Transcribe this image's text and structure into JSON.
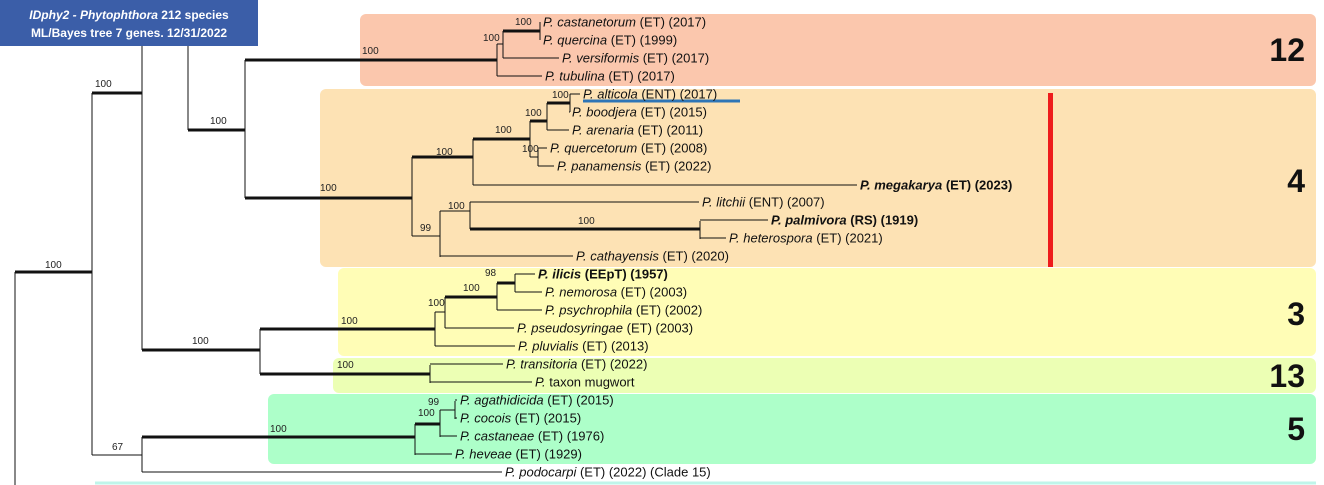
{
  "title": {
    "line1": [
      "IDphy2 - Phytophthora",
      " 212 species"
    ],
    "line2": "ML/Bayes tree 7 genes. 12/31/2022"
  },
  "clades": [
    {
      "label": "12",
      "color": "#fbc7ad"
    },
    {
      "label": "4",
      "color": "#fde2b4"
    },
    {
      "label": "3",
      "color": "#fffdb6"
    },
    {
      "label": "13",
      "color": "#ecffb4"
    },
    {
      "label": "5",
      "color": "#adffc9"
    }
  ],
  "leaves": [
    {
      "genus": "P.",
      "species": "castanetorum",
      "tag": "(ET) (2017)"
    },
    {
      "genus": "P.",
      "species": "quercina",
      "tag": "(ET) (1999)"
    },
    {
      "genus": "P.",
      "species": "versiformis",
      "tag": "(ET) (2017)"
    },
    {
      "genus": "P.",
      "species": "tubulina",
      "tag": "(ET) (2017)"
    },
    {
      "genus": "P.",
      "species": "alticola",
      "tag": "(ENT) (2017)",
      "underline": true
    },
    {
      "genus": "P.",
      "species": "boodjera",
      "tag": "(ET) (2015)"
    },
    {
      "genus": "P.",
      "species": "arenaria",
      "tag": "(ET) (2011)"
    },
    {
      "genus": "P.",
      "species": "quercetorum",
      "tag": "(ET) (2008)"
    },
    {
      "genus": "P.",
      "species": "panamensis",
      "tag": "(ET) (2022)"
    },
    {
      "genus": "P.",
      "species": "megakarya",
      "tag": "(ET) (2023)",
      "bold": true
    },
    {
      "genus": "P.",
      "species": "litchii",
      "tag": "(ENT) (2007)"
    },
    {
      "genus": "P.",
      "species": "palmivora",
      "tag": "(RS) (1919)",
      "bold": true
    },
    {
      "genus": "P.",
      "species": "heterospora",
      "tag": "(ET) (2021)"
    },
    {
      "genus": "P.",
      "species": "cathayensis",
      "tag": "(ET) (2020)"
    },
    {
      "genus": "P.",
      "species": "ilicis",
      "tag": "(EEpT) (1957)",
      "bold": true
    },
    {
      "genus": "P.",
      "species": "nemorosa",
      "tag": "(ET) (2003)"
    },
    {
      "genus": "P.",
      "species": "psychrophila",
      "tag": "(ET) (2002)"
    },
    {
      "genus": "P.",
      "species": "pseudosyringae",
      "tag": "(ET) (2003)"
    },
    {
      "genus": "P.",
      "species": "pluvialis",
      "tag": "(ET) (2013)"
    },
    {
      "genus": "P.",
      "species": "transitoria",
      "tag": "(ET) (2022)"
    },
    {
      "genus": "P.",
      "tag": "taxon mugwort"
    },
    {
      "genus": "P.",
      "species": "agathidicida",
      "tag": "(ET) (2015)"
    },
    {
      "genus": "P.",
      "species": "cocois",
      "tag": "(ET) (2015)"
    },
    {
      "genus": "P.",
      "species": "castaneae",
      "tag": "(ET) (1976)"
    },
    {
      "genus": "P.",
      "species": "heveae",
      "tag": "(ET) (1929)"
    },
    {
      "genus": "P.",
      "species": "podocarpi",
      "tag": "(ET) (2022) (Clade 15)"
    }
  ],
  "supports": [
    100,
    100,
    100,
    100,
    100,
    100,
    100,
    100,
    100,
    100,
    100,
    100,
    99,
    100,
    100,
    98,
    100,
    100,
    100,
    100,
    100,
    99,
    100,
    100,
    67
  ]
}
